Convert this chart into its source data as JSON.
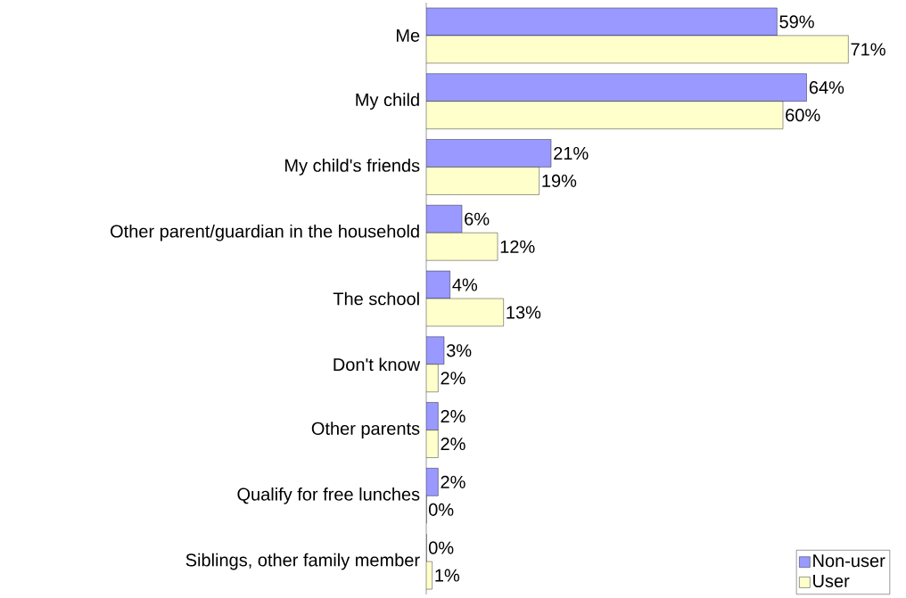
{
  "chart_data": {
    "type": "bar",
    "orientation": "horizontal",
    "categories": [
      "Me",
      "My child",
      "My child's friends",
      "Other parent/guardian in the household",
      "The school",
      "Don't know",
      "Other parents",
      "Qualify for free lunches",
      "Siblings, other family member"
    ],
    "series": [
      {
        "name": "Non-user",
        "color": "#9999ff",
        "values": [
          59,
          64,
          21,
          6,
          4,
          3,
          2,
          2,
          0
        ],
        "value_labels": [
          "59%",
          "64%",
          "21%",
          "6%",
          "4%",
          "3%",
          "2%",
          "2%",
          "0%"
        ]
      },
      {
        "name": "User",
        "color": "#ffffcc",
        "values": [
          71,
          60,
          19,
          12,
          13,
          2,
          2,
          0,
          1
        ],
        "value_labels": [
          "71%",
          "60%",
          "19%",
          "12%",
          "13%",
          "2%",
          "2%",
          "0%",
          "1%"
        ]
      }
    ],
    "xlim": [
      0,
      78
    ],
    "tick_labels": "y",
    "legend": "bottom right"
  }
}
